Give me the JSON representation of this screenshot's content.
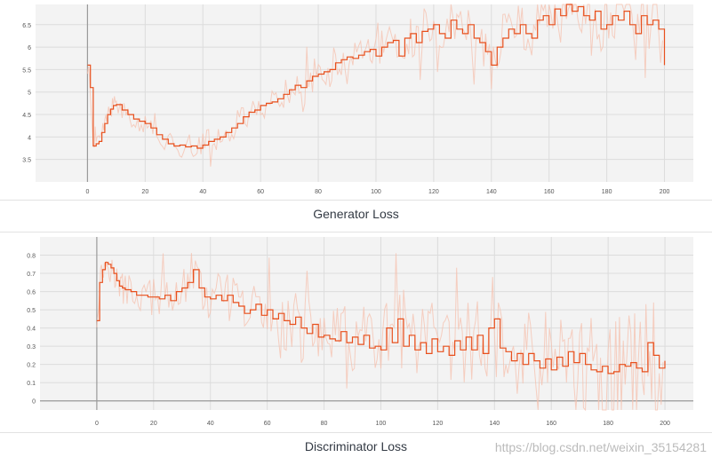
{
  "watermark": "https://blog.csdn.net/weixin_35154281",
  "colors": {
    "smoothed": "#e8501d",
    "raw": "#f6c0ae",
    "plot_bg": "#f3f3f3"
  },
  "chart_data": [
    {
      "type": "line",
      "title": "Generator Loss",
      "xlim": [
        -18,
        210
      ],
      "ylim": [
        3,
        6.95
      ],
      "x_ticks": [
        0,
        20,
        40,
        60,
        80,
        100,
        120,
        140,
        160,
        180,
        200
      ],
      "y_ticks": [
        3.5,
        4,
        4.5,
        5,
        5.5,
        6,
        6.5
      ],
      "y_tick_labels": [
        "3.5",
        "4",
        "4.5",
        "5",
        "5.5",
        "6",
        "6.5"
      ],
      "smoothing_window": 5,
      "x": [
        0,
        1,
        2,
        3,
        4,
        5,
        6,
        7,
        8,
        9,
        10,
        12,
        14,
        16,
        18,
        20,
        22,
        24,
        26,
        28,
        30,
        32,
        34,
        36,
        38,
        40,
        42,
        44,
        46,
        48,
        50,
        52,
        54,
        56,
        58,
        60,
        62,
        64,
        66,
        68,
        70,
        72,
        74,
        76,
        78,
        80,
        82,
        84,
        86,
        88,
        90,
        92,
        94,
        96,
        98,
        100,
        102,
        104,
        106,
        108,
        110,
        112,
        114,
        116,
        118,
        120,
        122,
        124,
        126,
        128,
        130,
        132,
        134,
        136,
        138,
        140,
        142,
        144,
        146,
        148,
        150,
        152,
        154,
        156,
        158,
        160,
        162,
        164,
        166,
        168,
        170,
        172,
        174,
        176,
        178,
        180,
        182,
        184,
        186,
        188,
        190,
        192,
        194,
        196,
        198,
        200
      ],
      "series": [
        {
          "values": [
            5.6,
            5.1,
            3.8,
            3.85,
            3.9,
            4.1,
            4.3,
            4.5,
            4.62,
            4.7,
            4.72,
            4.6,
            4.5,
            4.4,
            4.35,
            4.3,
            4.2,
            4.05,
            3.95,
            3.85,
            3.8,
            3.82,
            3.78,
            3.8,
            3.75,
            3.82,
            3.9,
            3.95,
            4.0,
            4.1,
            4.2,
            4.3,
            4.45,
            4.55,
            4.6,
            4.7,
            4.75,
            4.78,
            4.85,
            4.95,
            5.05,
            5.15,
            5.1,
            5.25,
            5.35,
            5.4,
            5.45,
            5.5,
            5.65,
            5.72,
            5.78,
            5.75,
            5.82,
            5.9,
            5.95,
            5.8,
            6.0,
            6.1,
            6.15,
            5.8,
            6.2,
            6.3,
            6.1,
            6.35,
            6.4,
            6.5,
            6.3,
            6.2,
            6.6,
            6.4,
            6.3,
            6.5,
            6.2,
            6.1,
            5.9,
            5.6,
            6.0,
            6.2,
            6.4,
            6.3,
            6.5,
            6.3,
            6.2,
            6.6,
            6.7,
            6.5,
            6.85,
            6.7,
            6.95,
            6.8,
            6.9,
            6.7,
            6.6,
            6.8,
            6.4,
            6.5,
            6.7,
            6.6,
            6.8,
            6.5,
            6.3,
            6.7,
            6.5,
            6.6,
            6.4,
            5.6
          ]
        }
      ]
    },
    {
      "type": "line",
      "title": "Discriminator Loss",
      "xlim": [
        -20,
        210
      ],
      "ylim": [
        -0.05,
        0.9
      ],
      "x_ticks": [
        0,
        20,
        40,
        60,
        80,
        100,
        120,
        140,
        160,
        180,
        200
      ],
      "y_ticks": [
        0,
        0.1,
        0.2,
        0.3,
        0.4,
        0.5,
        0.6,
        0.7,
        0.8
      ],
      "y_tick_labels": [
        "0",
        "0.1",
        "0.2",
        "0.3",
        "0.4",
        "0.5",
        "0.6",
        "0.7",
        "0.8"
      ],
      "smoothing_window": 5,
      "x": [
        0,
        1,
        2,
        3,
        4,
        5,
        6,
        7,
        8,
        9,
        10,
        12,
        14,
        16,
        18,
        20,
        22,
        24,
        26,
        28,
        30,
        32,
        34,
        36,
        38,
        40,
        42,
        44,
        46,
        48,
        50,
        52,
        54,
        56,
        58,
        60,
        62,
        64,
        66,
        68,
        70,
        72,
        74,
        76,
        78,
        80,
        82,
        84,
        86,
        88,
        90,
        92,
        94,
        96,
        98,
        100,
        102,
        104,
        106,
        108,
        110,
        112,
        114,
        116,
        118,
        120,
        122,
        124,
        126,
        128,
        130,
        132,
        134,
        136,
        138,
        140,
        142,
        144,
        146,
        148,
        150,
        152,
        154,
        156,
        158,
        160,
        162,
        164,
        166,
        168,
        170,
        172,
        174,
        176,
        178,
        180,
        182,
        184,
        186,
        188,
        190,
        192,
        194,
        196,
        198,
        200
      ],
      "series": [
        {
          "values": [
            0.44,
            0.65,
            0.72,
            0.76,
            0.75,
            0.73,
            0.7,
            0.66,
            0.63,
            0.62,
            0.61,
            0.6,
            0.58,
            0.58,
            0.57,
            0.57,
            0.56,
            0.58,
            0.55,
            0.6,
            0.62,
            0.65,
            0.72,
            0.62,
            0.57,
            0.56,
            0.58,
            0.55,
            0.58,
            0.54,
            0.52,
            0.48,
            0.5,
            0.53,
            0.47,
            0.5,
            0.45,
            0.48,
            0.44,
            0.42,
            0.46,
            0.4,
            0.37,
            0.42,
            0.35,
            0.36,
            0.34,
            0.33,
            0.38,
            0.32,
            0.35,
            0.31,
            0.36,
            0.29,
            0.3,
            0.28,
            0.4,
            0.32,
            0.45,
            0.3,
            0.36,
            0.28,
            0.32,
            0.26,
            0.34,
            0.27,
            0.3,
            0.25,
            0.33,
            0.28,
            0.35,
            0.28,
            0.36,
            0.26,
            0.4,
            0.45,
            0.29,
            0.27,
            0.22,
            0.26,
            0.2,
            0.26,
            0.22,
            0.18,
            0.23,
            0.17,
            0.24,
            0.19,
            0.27,
            0.21,
            0.26,
            0.2,
            0.17,
            0.16,
            0.19,
            0.15,
            0.16,
            0.2,
            0.19,
            0.21,
            0.18,
            0.16,
            0.32,
            0.25,
            0.18,
            0.22
          ]
        }
      ]
    }
  ]
}
